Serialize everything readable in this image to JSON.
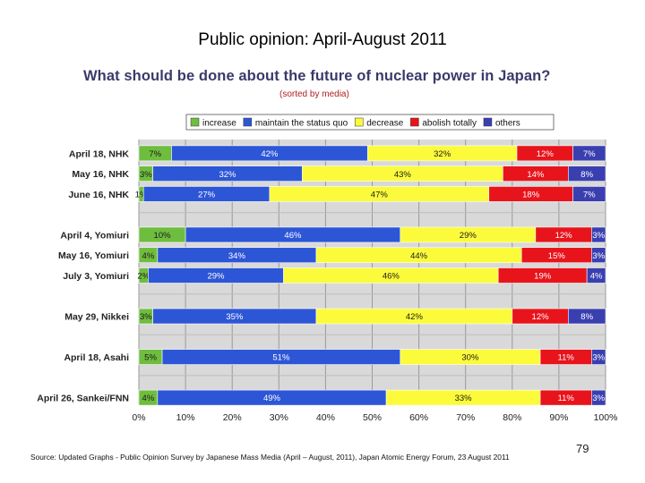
{
  "slide": {
    "title": "Public opinion: April-August 2011",
    "source": "Source: Updated Graphs - Public Opinion Survey by Japanese Mass Media (April – August, 2011), Japan Atomic Energy Forum, 23 August 2011",
    "page_number": "79"
  },
  "chart_data": {
    "type": "bar",
    "orientation": "horizontal",
    "stacked": true,
    "percent": true,
    "title": "What should be done about the future of nuclear power in Japan?",
    "subtitle": "(sorted by media)",
    "xlim": [
      0,
      100
    ],
    "x_ticks": [
      "0%",
      "10%",
      "20%",
      "30%",
      "40%",
      "50%",
      "60%",
      "70%",
      "80%",
      "90%",
      "100%"
    ],
    "categories": [
      "April 18, NHK",
      "May 16, NHK",
      "June 16, NHK",
      "April 4, Yomiuri",
      "May 16, Yomiuri",
      "July 3, Yomiuri",
      "May 29, Nikkei",
      "April 18, Asahi",
      "April 26, Sankei/FNN"
    ],
    "groups": [
      3,
      3,
      1,
      1,
      1
    ],
    "legend": [
      "increase",
      "maintain the status quo",
      "decrease",
      "abolish totally",
      "others"
    ],
    "colors": [
      "#6fbd3e",
      "#2d56d6",
      "#fbfb3c",
      "#e8141c",
      "#3a3fb0"
    ],
    "label_colors": [
      "#1a1a1a",
      "#ffffff",
      "#1a1a1a",
      "#ffffff",
      "#ffffff"
    ],
    "values": [
      [
        7,
        42,
        32,
        12,
        7
      ],
      [
        3,
        32,
        43,
        14,
        8
      ],
      [
        1,
        27,
        47,
        18,
        7
      ],
      [
        10,
        46,
        29,
        12,
        3
      ],
      [
        4,
        34,
        44,
        15,
        3
      ],
      [
        2,
        29,
        46,
        19,
        4
      ],
      [
        3,
        35,
        42,
        12,
        8
      ],
      [
        5,
        51,
        30,
        11,
        3
      ],
      [
        4,
        49,
        33,
        11,
        3
      ]
    ],
    "labels": [
      [
        "7%",
        "42%",
        "32%",
        "12%",
        "7%"
      ],
      [
        "3%",
        "32%",
        "43%",
        "14%",
        "8%"
      ],
      [
        "1%",
        "27%",
        "47%",
        "18%",
        "7%"
      ],
      [
        "10%",
        "46%",
        "29%",
        "12%",
        "3%"
      ],
      [
        "4%",
        "34%",
        "44%",
        "15%",
        "3%"
      ],
      [
        "2%",
        "29%",
        "46%",
        "19%",
        "4%"
      ],
      [
        "3%",
        "35%",
        "42%",
        "12%",
        "8%"
      ],
      [
        "5%",
        "51%",
        "30%",
        "11%",
        "3%"
      ],
      [
        "4%",
        "49%",
        "33%",
        "11%",
        "3%"
      ]
    ],
    "grid": true
  }
}
